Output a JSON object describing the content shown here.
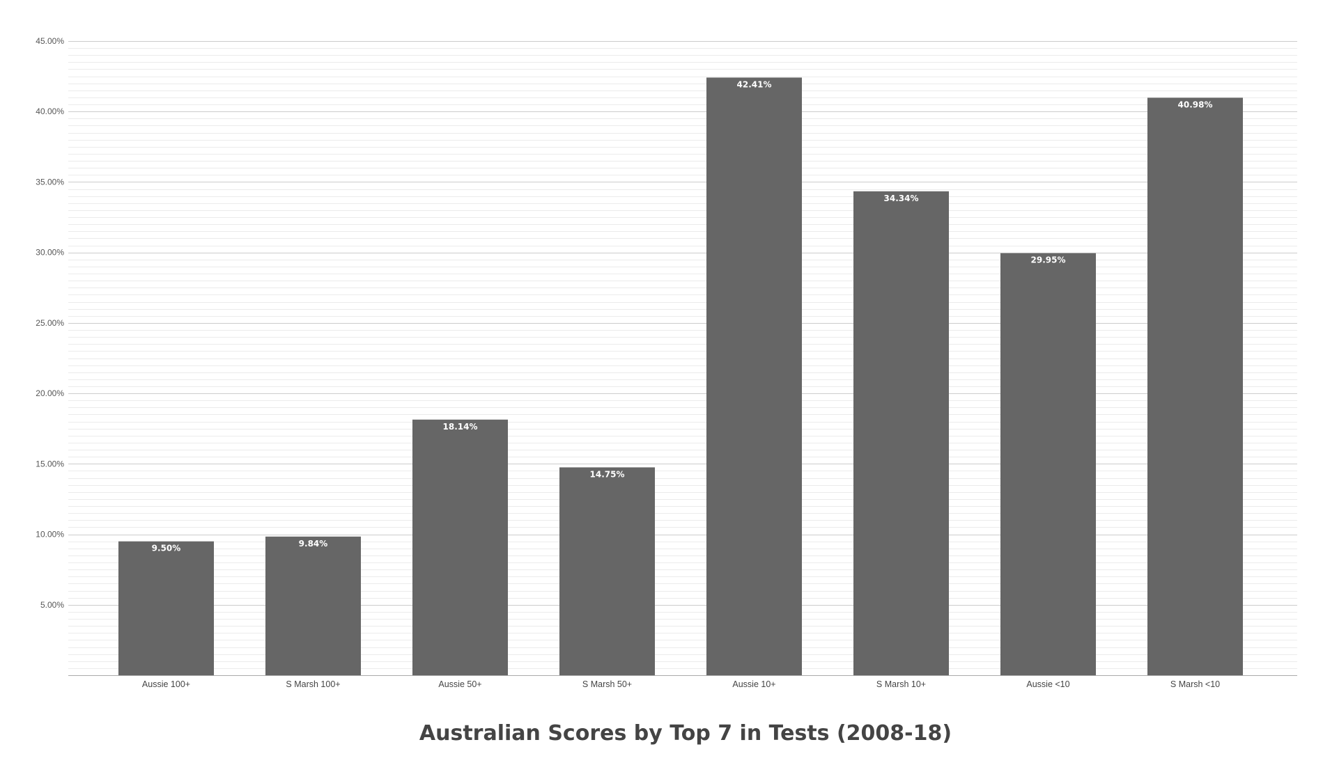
{
  "chart_data": {
    "type": "bar",
    "title": "Australian Scores by Top 7 in Tests (2008-18)",
    "xlabel": "",
    "ylabel": "",
    "categories": [
      "Aussie 100+",
      "S Marsh 100+",
      "Aussie 50+",
      "S Marsh 50+",
      "Aussie 10+",
      "S Marsh 10+",
      "Aussie <10",
      "S Marsh <10"
    ],
    "values": [
      9.5,
      9.84,
      18.14,
      14.75,
      42.41,
      34.34,
      29.95,
      40.98
    ],
    "data_labels": [
      "9.50%",
      "9.84%",
      "18.14%",
      "14.75%",
      "42.41%",
      "34.34%",
      "29.95%",
      "40.98%"
    ],
    "ylim": [
      0,
      45
    ],
    "y_ticks": [
      5,
      10,
      15,
      20,
      25,
      30,
      35,
      40,
      45
    ],
    "y_tick_labels": [
      "5.00%",
      "10.00%",
      "15.00%",
      "20.00%",
      "25.00%",
      "30.00%",
      "35.00%",
      "40.00%",
      "45.00%"
    ],
    "minor_grid_step": 0.5,
    "grid": true,
    "legend": "none",
    "colors": {
      "bar": "#666666",
      "major_grid": "#cccccc",
      "minor_grid": "#ebebeb",
      "axis": "#aaaaaa",
      "data_label": "#ffffff",
      "title": "#444444"
    }
  }
}
